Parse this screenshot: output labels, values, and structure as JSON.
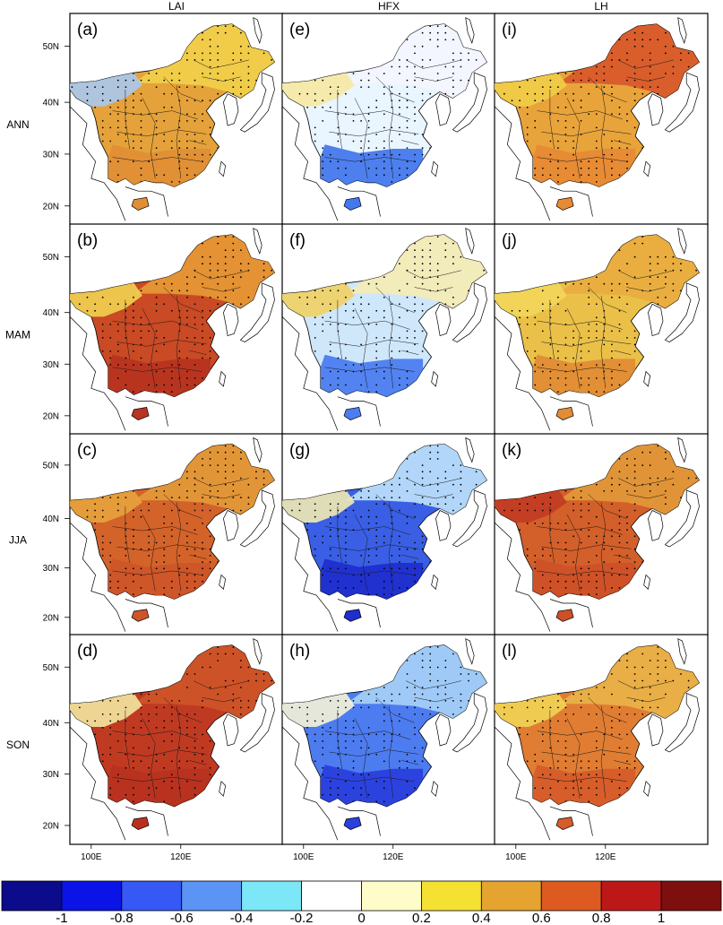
{
  "columns": [
    "LAI",
    "HFX",
    "LH"
  ],
  "rows": [
    "ANN",
    "MAM",
    "JJA",
    "SON"
  ],
  "panels": [
    {
      "label": "(a)",
      "row": 0,
      "col": 0,
      "fill": "#e5a23a",
      "north": "#f2d04a",
      "south": "#e08f35",
      "northwest": "#a9c8f0"
    },
    {
      "label": "(e)",
      "row": 0,
      "col": 1,
      "fill": "#e9f5ff",
      "north": "#f4f6ff",
      "south": "#4478ee",
      "northwest": "#f6e9a2"
    },
    {
      "label": "(i)",
      "row": 0,
      "col": 2,
      "fill": "#e8a33a",
      "north": "#d8562a",
      "south": "#e78a34",
      "northwest": "#f1cd48"
    },
    {
      "label": "(b)",
      "row": 1,
      "col": 0,
      "fill": "#c94a24",
      "north": "#e79a35",
      "south": "#b83320",
      "northwest": "#f1d251"
    },
    {
      "label": "(f)",
      "row": 1,
      "col": 1,
      "fill": "#cfe7fb",
      "north": "#f5ebb3",
      "south": "#4b7df0",
      "northwest": "#f0d062"
    },
    {
      "label": "(j)",
      "row": 1,
      "col": 2,
      "fill": "#eac048",
      "north": "#e9ac3e",
      "south": "#e28c35",
      "northwest": "#f2d65a"
    },
    {
      "label": "(c)",
      "row": 2,
      "col": 0,
      "fill": "#d4632a",
      "north": "#e39a38",
      "south": "#cf5528",
      "northwest": "#e7a23c"
    },
    {
      "label": "(g)",
      "row": 2,
      "col": 1,
      "fill": "#3a5fe5",
      "north": "#bfe3fb",
      "south": "#1f2ecf",
      "northwest": "#f2eab2"
    },
    {
      "label": "(k)",
      "row": 2,
      "col": 2,
      "fill": "#d35f2a",
      "north": "#e29a38",
      "south": "#cd5027",
      "northwest": "#c23b22"
    },
    {
      "label": "(d)",
      "row": 3,
      "col": 0,
      "fill": "#c03a22",
      "north": "#cf5528",
      "south": "#b83120",
      "northwest": "#f4e7a0"
    },
    {
      "label": "(h)",
      "row": 3,
      "col": 1,
      "fill": "#4d7cf0",
      "north": "#a8d3f7",
      "south": "#2a3fdc",
      "northwest": "#f6f3d8"
    },
    {
      "label": "(l)",
      "row": 3,
      "col": 2,
      "fill": "#e07d33",
      "north": "#eab447",
      "south": "#d65c2a",
      "northwest": "#f2d454"
    }
  ],
  "lat_ticks": [
    "50N",
    "40N",
    "30N",
    "20N"
  ],
  "lon_ticks": [
    "100E",
    "120E"
  ],
  "colorbar": {
    "colors": [
      "#0b0b8c",
      "#0a14e6",
      "#3658f5",
      "#5b94f5",
      "#7be7f7",
      "#ffffff",
      "#fefcc9",
      "#f5e132",
      "#e4a42f",
      "#dd5a21",
      "#bd1818",
      "#7d0f0f"
    ],
    "labels": [
      "-1",
      "-0.8",
      "-0.6",
      "-0.4",
      "-0.2",
      "0",
      "0.2",
      "0.4",
      "0.6",
      "0.8",
      "1"
    ]
  }
}
